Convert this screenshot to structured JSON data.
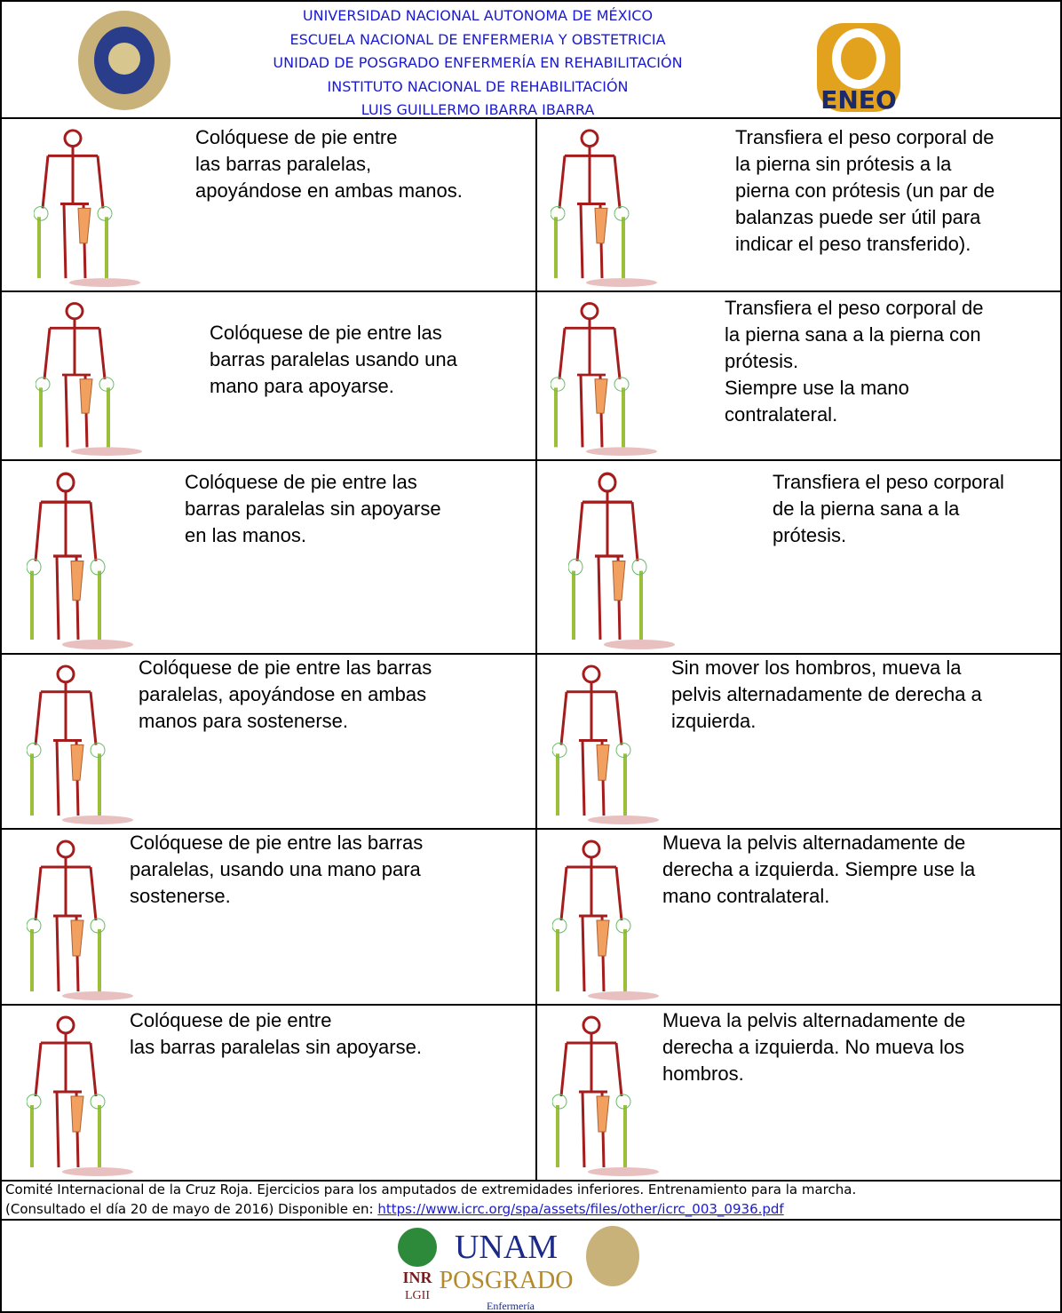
{
  "header": {
    "lines": [
      "UNIVERSIDAD NACIONAL AUTONOMA DE MÉXICO",
      "ESCUELA NACIONAL DE ENFERMERIA Y OBSTETRICIA",
      "UNIDAD DE POSGRADO ENFERMERÍA EN REHABILITACIÓN",
      "INSTITUTO NACIONAL DE REHABILITACIÓN",
      "LUIS GUILLERMO IBARRA IBARRA"
    ],
    "logo_right": "ENEO"
  },
  "rows": [
    {
      "left": [
        "Colóquese de pie entre",
        "las barras paralelas,",
        "apoyándose en ambas manos."
      ],
      "right": [
        "Transfiera el peso corporal de",
        "la pierna sin prótesis a la",
        "pierna con prótesis (un par de",
        "balanzas puede ser útil para",
        "indicar el peso transferido)."
      ]
    },
    {
      "left": [
        "Colóquese de pie entre las",
        "barras paralelas usando una",
        "mano para apoyarse."
      ],
      "right": [
        "Transfiera el peso corporal de",
        "la pierna sana a la pierna con",
        "prótesis.",
        "Siempre use la mano",
        "contralateral."
      ]
    },
    {
      "left": [
        "Colóquese de pie entre las",
        "barras paralelas sin apoyarse",
        "en las manos."
      ],
      "right": [
        "Transfiera el peso corporal",
        "de la pierna sana a la",
        "prótesis."
      ]
    },
    {
      "left": [
        "Colóquese de pie entre las barras",
        "paralelas, apoyándose en ambas",
        "manos para sostenerse."
      ],
      "right": [
        "Sin mover los hombros, mueva la",
        "pelvis alternadamente de derecha a",
        "izquierda."
      ]
    },
    {
      "left": [
        "Colóquese de pie entre las barras",
        "paralelas, usando una mano para",
        "sostenerse."
      ],
      "right": [
        "Mueva la pelvis alternadamente de",
        "derecha a izquierda. Siempre use la",
        "mano contralateral."
      ]
    },
    {
      "left": [
        "Colóquese de pie entre",
        "las barras paralelas sin apoyarse."
      ],
      "right": [
        "Mueva la pelvis alternadamente de",
        "derecha a izquierda. No mueva los",
        "hombros."
      ]
    }
  ],
  "footer": {
    "citation": [
      "Comité Internacional de la Cruz Roja. Ejercicios para los amputados de extremidades inferiores. Entrenamiento para la marcha.",
      "(Consultado el día 20 de mayo de 2016) Disponible en: "
    ],
    "link": "https://www.icrc.org/spa/assets/files/other/icrc_003_0936.pdf",
    "logos": {
      "inr": "INR",
      "inr_sub": "LGII",
      "unam": "UNAM",
      "posgrado": "POSGRADO",
      "enfermeria": "Enfermería"
    }
  }
}
